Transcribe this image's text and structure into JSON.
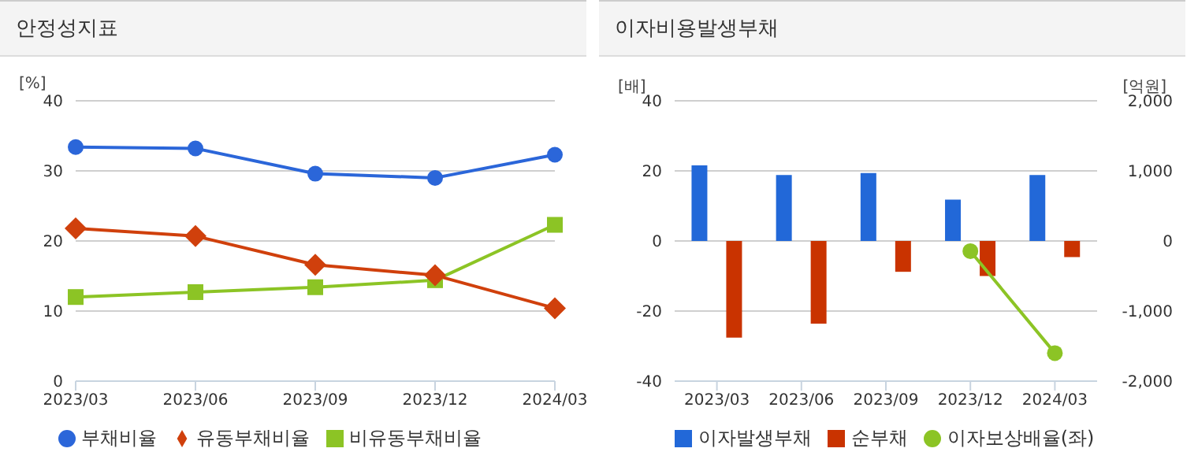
{
  "chart_data": [
    {
      "type": "line",
      "title": "안정성지표",
      "ylabel": "[%]",
      "categories": [
        "2023/03",
        "2023/06",
        "2023/09",
        "2023/12",
        "2024/03"
      ],
      "ylim": [
        0,
        40
      ],
      "yticks": [
        0,
        10,
        20,
        30,
        40
      ],
      "grid": "y",
      "legend": "bottom",
      "series": [
        {
          "name": "부채비율",
          "color": "#2b66d9",
          "marker": "circle",
          "values": [
            33.4,
            33.2,
            29.6,
            29.0,
            32.3
          ]
        },
        {
          "name": "유동부채비율",
          "color": "#d0400c",
          "marker": "diamond",
          "values": [
            21.8,
            20.7,
            16.6,
            15.1,
            10.4
          ]
        },
        {
          "name": "비유동부채비율",
          "color": "#8cc425",
          "marker": "square",
          "values": [
            12.0,
            12.7,
            13.4,
            14.4,
            22.3
          ]
        }
      ]
    },
    {
      "type": "bar",
      "title": "이자비용발생부채",
      "ylabel": "[배]",
      "y2label": "[억원]",
      "categories": [
        "2023/03",
        "2023/06",
        "2023/09",
        "2023/12",
        "2024/03"
      ],
      "ylim": [
        -40,
        40
      ],
      "yticks": [
        -40,
        -20,
        0,
        20,
        40
      ],
      "y2lim": [
        -2000,
        2000
      ],
      "y2ticks": [
        {
          "value": -2000,
          "label": "-2,000"
        },
        {
          "value": -1000,
          "label": "-1,000"
        },
        0,
        {
          "value": 1000,
          "label": "1,000"
        },
        {
          "value": 2000,
          "label": "2,000"
        }
      ],
      "grid": "y",
      "legend": "bottom",
      "series": [
        {
          "name": "이자발생부채",
          "color": "#2268d8",
          "axis": "y2",
          "values": [
            1080,
            940,
            970,
            590,
            940
          ]
        },
        {
          "name": "순부채",
          "color": "#c93300",
          "axis": "y2",
          "values": [
            -1380,
            -1180,
            -440,
            -500,
            -230
          ]
        },
        {
          "name": "이자보상배율(좌)",
          "type": "line",
          "color": "#8cc425",
          "marker": "circle",
          "values": [
            null,
            null,
            null,
            -2.9,
            -32
          ]
        }
      ]
    }
  ]
}
